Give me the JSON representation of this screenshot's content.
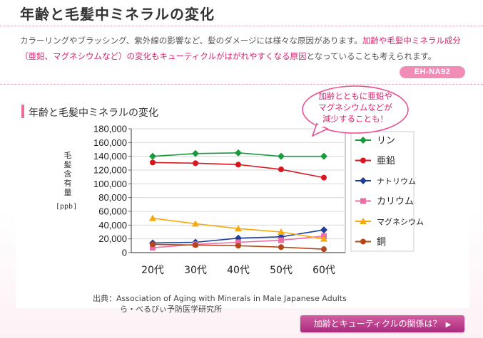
{
  "page": {
    "title": "年齢と毛髪中ミネラルの変化",
    "desc_part1": "カラーリングやブラッシング、紫外線の影響など、髪のダメージには様々な原因があります。",
    "desc_highlight": "加齢や毛髪中ミネラル成分（亜鉛、マグネシウムなど）の変化もキューティクルがはがれやすくなる原因",
    "desc_part2": "となっていることも考えられます。",
    "model_badge": "EH-NA92",
    "chart_heading": "年齢と毛髪中ミネラルの変化",
    "callout": [
      "加齢とともに亜鉛や",
      "マグネシウムなどが",
      "減少することも！"
    ],
    "source_line1": "出典：Association of Aging with Minerals in Male Japanese Adults",
    "source_line2": "ら・べるびぃ予防医学研究所",
    "link_button": "加齢とキューティクルの関係は？",
    "link_arrow": "▶"
  },
  "chart_data": {
    "type": "line",
    "categories": [
      "20代",
      "30代",
      "40代",
      "50代",
      "60代"
    ],
    "ylabel": "毛髪含有量",
    "yunit": "[ppb]",
    "ylim": [
      0,
      180000
    ],
    "yticks": [
      0,
      20000,
      40000,
      60000,
      80000,
      100000,
      120000,
      140000,
      160000,
      180000
    ],
    "ytick_labels": [
      "0",
      "20,000",
      "40,000",
      "60,000",
      "80,000",
      "100,000",
      "120,000",
      "140,000",
      "160,000",
      "180,000"
    ],
    "grid": true,
    "legend_position": "right",
    "series": [
      {
        "name": "リン",
        "values": [
          140000,
          144000,
          145000,
          140000,
          140000
        ],
        "color": "#1a9a3e",
        "marker": "diamond"
      },
      {
        "name": "亜鉛",
        "values": [
          131000,
          130000,
          128000,
          121000,
          109000
        ],
        "color": "#d7161e",
        "marker": "circle"
      },
      {
        "name": "ナトリウム",
        "values": [
          14000,
          15000,
          21000,
          23000,
          33000
        ],
        "color": "#1d3f98",
        "marker": "diamond"
      },
      {
        "name": "カリウム",
        "values": [
          7000,
          12000,
          15000,
          18000,
          24000
        ],
        "color": "#ea6fa6",
        "marker": "square"
      },
      {
        "name": "マグネシウム",
        "values": [
          50000,
          42000,
          35000,
          30000,
          20000
        ],
        "color": "#f5a90c",
        "marker": "triangle"
      },
      {
        "name": "銅",
        "values": [
          12000,
          11000,
          10000,
          8000,
          5000
        ],
        "color": "#b3471a",
        "marker": "circle"
      }
    ]
  }
}
